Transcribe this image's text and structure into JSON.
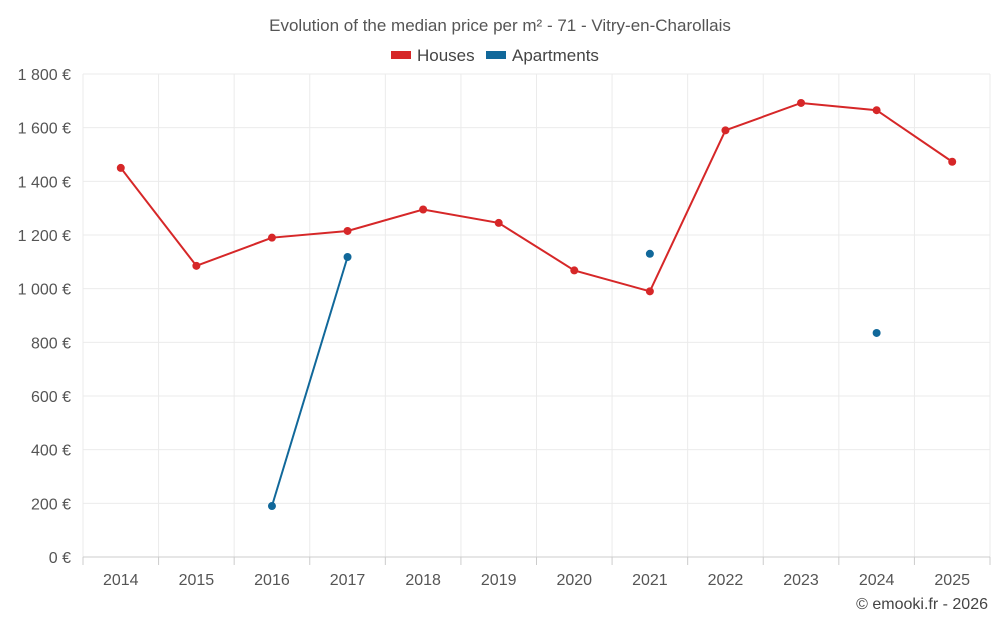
{
  "chart_data": {
    "type": "line",
    "title": "Evolution of the median price per m² - 71 - Vitry-en-Charollais",
    "categories": [
      "2014",
      "2015",
      "2016",
      "2017",
      "2018",
      "2019",
      "2020",
      "2021",
      "2022",
      "2023",
      "2024",
      "2025"
    ],
    "ylim": [
      0,
      1800
    ],
    "yticks": [
      0,
      200,
      400,
      600,
      800,
      1000,
      1200,
      1400,
      1600,
      1800
    ],
    "ytick_labels": [
      "0 €",
      "200 €",
      "400 €",
      "600 €",
      "800 €",
      "1 000 €",
      "1 200 €",
      "1 400 €",
      "1 600 €",
      "1 800 €"
    ],
    "series": [
      {
        "name": "Houses",
        "color": "#d62728",
        "values": [
          1450,
          1085,
          1190,
          1215,
          1295,
          1245,
          1068,
          990,
          1590,
          1692,
          1665,
          1473
        ]
      },
      {
        "name": "Apartments",
        "color": "#11689a",
        "values": [
          null,
          null,
          190,
          1118,
          null,
          null,
          null,
          1130,
          null,
          null,
          835,
          null
        ]
      }
    ],
    "legend_position": "top-center",
    "grid": true
  },
  "credit": "© emooki.fr - 2026"
}
